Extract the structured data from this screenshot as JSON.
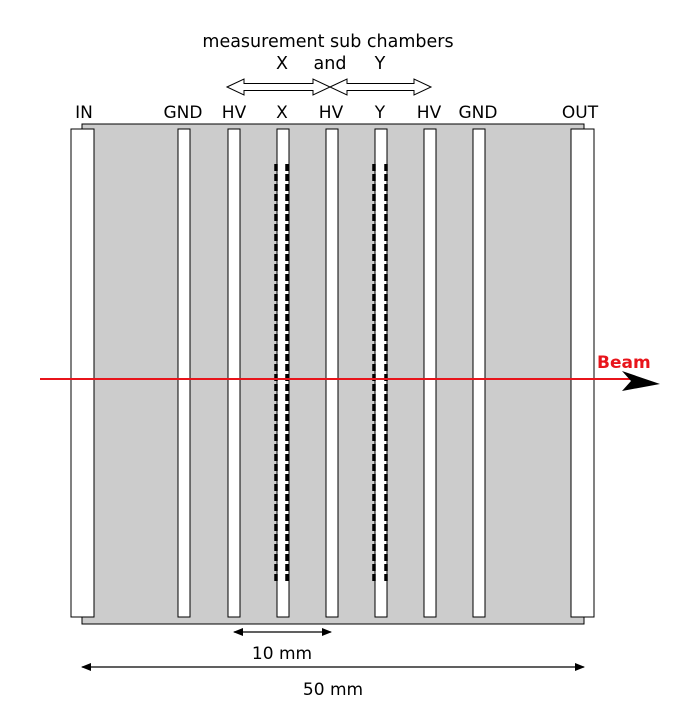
{
  "header": {
    "title": "measurement sub chambers",
    "left_chamber": "X",
    "joiner": "and",
    "right_chamber": "Y"
  },
  "electrodes": [
    {
      "id": "in",
      "label": "IN"
    },
    {
      "id": "gnd-left",
      "label": "GND"
    },
    {
      "id": "hv-left",
      "label": "HV"
    },
    {
      "id": "x",
      "label": "X"
    },
    {
      "id": "hv-middle",
      "label": "HV"
    },
    {
      "id": "y",
      "label": "Y"
    },
    {
      "id": "hv-right",
      "label": "HV"
    },
    {
      "id": "gnd-right",
      "label": "GND"
    },
    {
      "id": "out",
      "label": "OUT"
    }
  ],
  "beam": {
    "label": "Beam",
    "color": "#e8141b"
  },
  "dimensions": {
    "small": "10 mm",
    "total": "50 mm"
  },
  "colors": {
    "chamber_fill": "#cccccc",
    "outline": "#000000",
    "electrode_fill": "#ffffff"
  }
}
